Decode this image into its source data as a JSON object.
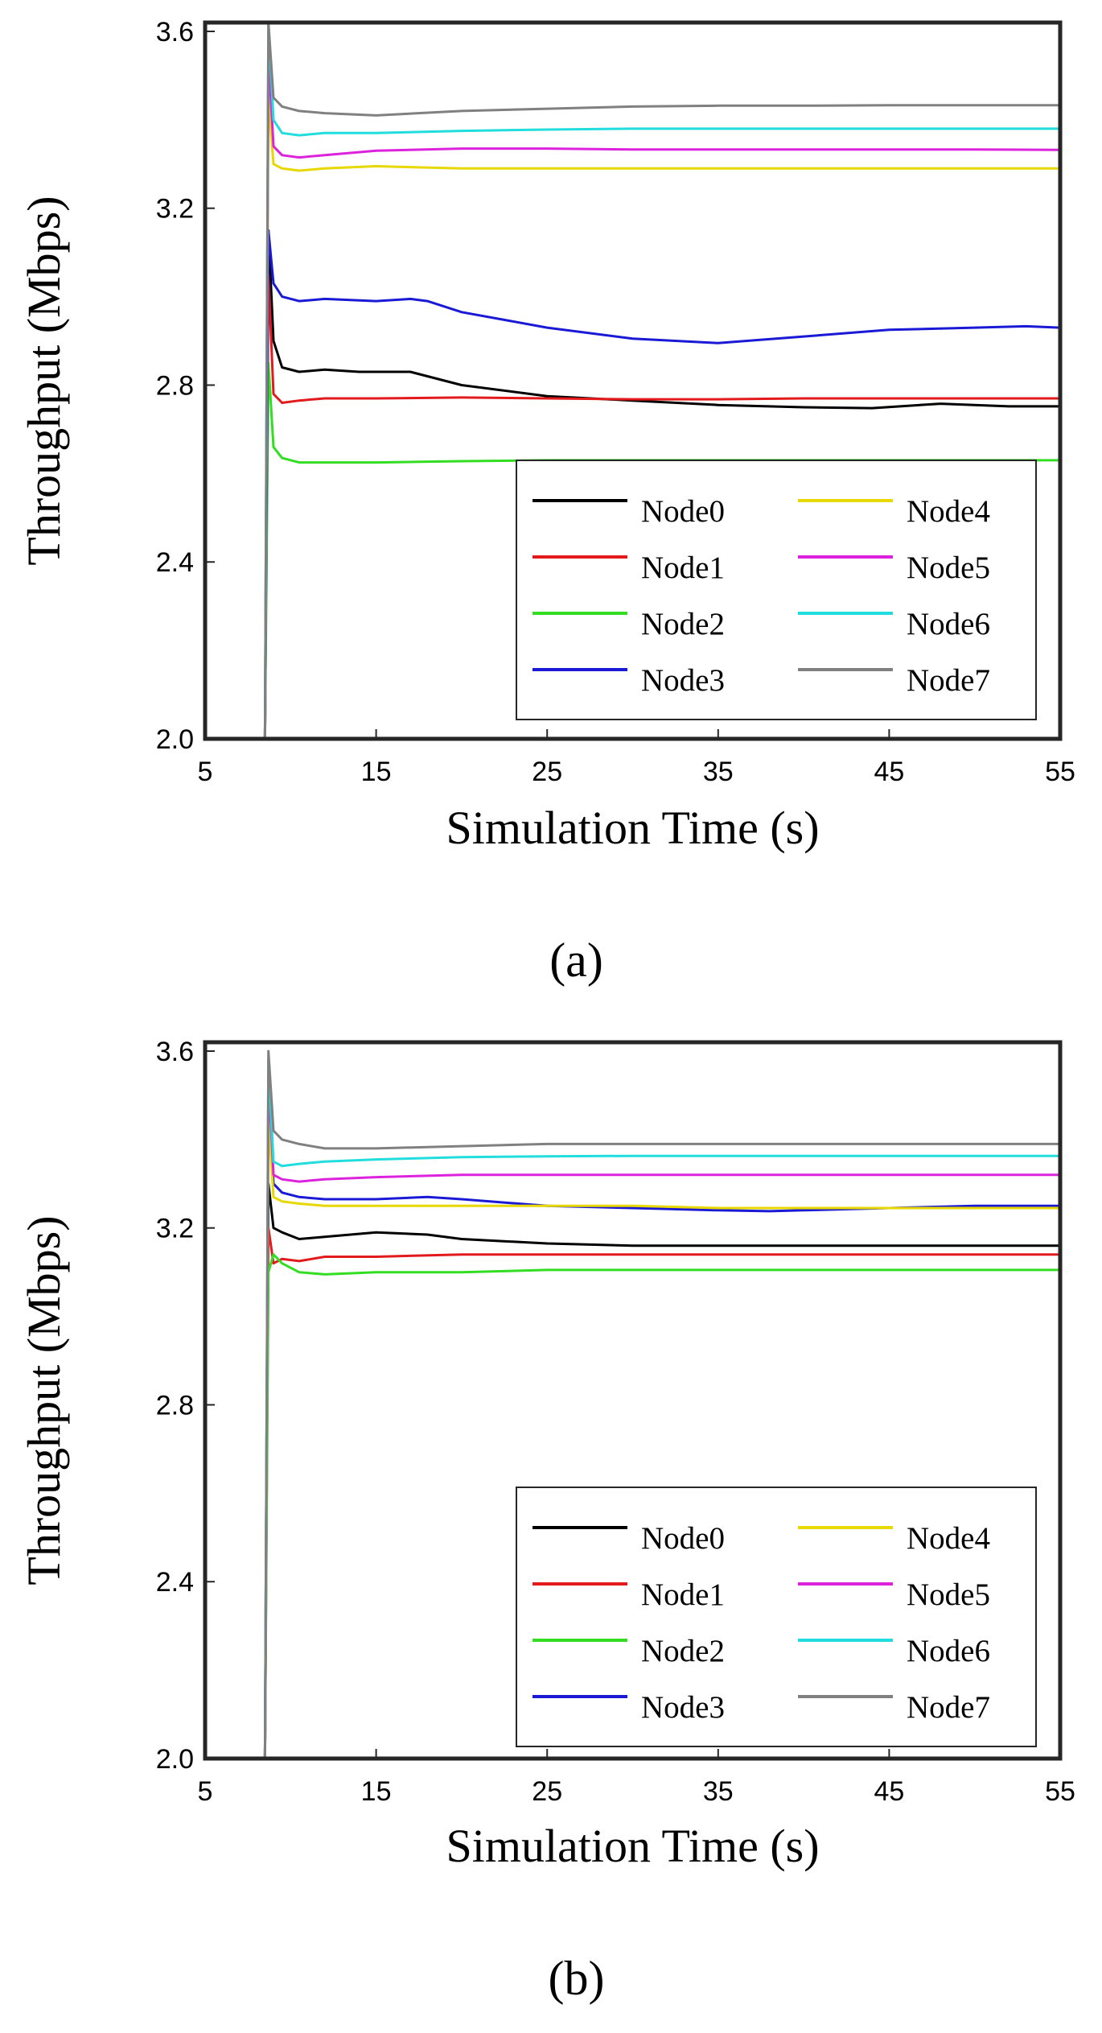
{
  "chart_data": [
    {
      "type": "line",
      "panel_label": "(a)",
      "xlabel": "Simulation Time (s)",
      "ylabel": "Throughput (Mbps)",
      "xlim": [
        5,
        55
      ],
      "ylim": [
        2.0,
        3.62
      ],
      "xticks": [
        5,
        15,
        25,
        35,
        45,
        55
      ],
      "xtick_labels": [
        "5",
        "15",
        "25",
        "35",
        "45",
        "55"
      ],
      "yticks": [
        2.0,
        2.4,
        2.8,
        3.2,
        3.6
      ],
      "ytick_labels": [
        "2.0",
        "2.4",
        "2.8",
        "3.2",
        "3.6"
      ],
      "legend_position": "bottom-right",
      "series": [
        {
          "name": "Node0",
          "color": "#000000",
          "x": [
            8.5,
            8.7,
            9.0,
            9.5,
            10.5,
            12,
            14,
            17,
            20,
            25,
            30,
            35,
            40,
            44,
            48,
            52,
            55
          ],
          "y": [
            2.0,
            3.15,
            2.9,
            2.84,
            2.83,
            2.835,
            2.83,
            2.83,
            2.8,
            2.775,
            2.765,
            2.755,
            2.75,
            2.748,
            2.758,
            2.752,
            2.752
          ]
        },
        {
          "name": "Node1",
          "color": "#e31a1c",
          "x": [
            8.5,
            8.7,
            9.0,
            9.5,
            10.5,
            12,
            15,
            20,
            25,
            30,
            35,
            40,
            45,
            50,
            55
          ],
          "y": [
            2.0,
            3.05,
            2.78,
            2.76,
            2.765,
            2.77,
            2.77,
            2.772,
            2.77,
            2.768,
            2.768,
            2.77,
            2.77,
            2.77,
            2.77
          ]
        },
        {
          "name": "Node2",
          "color": "#33dd22",
          "x": [
            8.5,
            8.7,
            9.0,
            9.5,
            10.5,
            12,
            15,
            20,
            25,
            30,
            35,
            40,
            45,
            50,
            55
          ],
          "y": [
            2.0,
            2.85,
            2.66,
            2.635,
            2.625,
            2.625,
            2.625,
            2.628,
            2.63,
            2.63,
            2.63,
            2.63,
            2.63,
            2.63,
            2.63
          ]
        },
        {
          "name": "Node3",
          "color": "#1a1ad6",
          "x": [
            8.5,
            8.7,
            9.0,
            9.5,
            10.5,
            12,
            15,
            17,
            18,
            20,
            25,
            30,
            35,
            40,
            45,
            50,
            53,
            55
          ],
          "y": [
            2.0,
            3.15,
            3.03,
            3.0,
            2.99,
            2.995,
            2.99,
            2.995,
            2.99,
            2.965,
            2.93,
            2.905,
            2.895,
            2.91,
            2.925,
            2.93,
            2.933,
            2.93
          ]
        },
        {
          "name": "Node4",
          "color": "#e6d800",
          "x": [
            8.5,
            8.7,
            9.0,
            9.5,
            10.5,
            12,
            15,
            20,
            25,
            30,
            35,
            40,
            45,
            50,
            55
          ],
          "y": [
            2.0,
            3.45,
            3.3,
            3.29,
            3.285,
            3.29,
            3.295,
            3.29,
            3.29,
            3.29,
            3.29,
            3.29,
            3.29,
            3.29,
            3.29
          ]
        },
        {
          "name": "Node5",
          "color": "#dd22dd",
          "x": [
            8.5,
            8.7,
            9.0,
            9.5,
            10.5,
            12,
            15,
            20,
            25,
            30,
            35,
            40,
            45,
            50,
            55
          ],
          "y": [
            2.0,
            3.55,
            3.34,
            3.32,
            3.315,
            3.32,
            3.33,
            3.335,
            3.335,
            3.333,
            3.333,
            3.333,
            3.333,
            3.333,
            3.332
          ]
        },
        {
          "name": "Node6",
          "color": "#22dddd",
          "x": [
            8.5,
            8.7,
            9.0,
            9.5,
            10.5,
            12,
            15,
            20,
            25,
            30,
            35,
            40,
            45,
            50,
            55
          ],
          "y": [
            2.0,
            3.62,
            3.4,
            3.37,
            3.365,
            3.37,
            3.37,
            3.375,
            3.378,
            3.38,
            3.38,
            3.38,
            3.38,
            3.38,
            3.38
          ]
        },
        {
          "name": "Node7",
          "color": "#808080",
          "x": [
            8.5,
            8.7,
            9.0,
            9.5,
            10.5,
            12,
            15,
            20,
            25,
            30,
            35,
            40,
            45,
            50,
            55
          ],
          "y": [
            2.0,
            3.62,
            3.45,
            3.43,
            3.42,
            3.415,
            3.41,
            3.42,
            3.425,
            3.43,
            3.432,
            3.432,
            3.433,
            3.433,
            3.433
          ]
        }
      ]
    },
    {
      "type": "line",
      "panel_label": "(b)",
      "xlabel": "Simulation Time (s)",
      "ylabel": "Throughput (Mbps)",
      "xlim": [
        5,
        55
      ],
      "ylim": [
        2.0,
        3.62
      ],
      "xticks": [
        5,
        15,
        25,
        35,
        45,
        55
      ],
      "xtick_labels": [
        "5",
        "15",
        "25",
        "35",
        "45",
        "55"
      ],
      "yticks": [
        2.0,
        2.4,
        2.8,
        3.2,
        3.6
      ],
      "ytick_labels": [
        "2.0",
        "2.4",
        "2.8",
        "3.2",
        "3.6"
      ],
      "legend_position": "bottom-right",
      "series": [
        {
          "name": "Node0",
          "color": "#000000",
          "x": [
            8.5,
            8.7,
            9.0,
            9.5,
            10.5,
            12,
            15,
            18,
            20,
            25,
            30,
            35,
            40,
            45,
            50,
            55
          ],
          "y": [
            2.0,
            3.3,
            3.2,
            3.19,
            3.175,
            3.18,
            3.19,
            3.185,
            3.175,
            3.165,
            3.16,
            3.16,
            3.16,
            3.16,
            3.16,
            3.16
          ]
        },
        {
          "name": "Node1",
          "color": "#e31a1c",
          "x": [
            8.5,
            8.7,
            9.0,
            9.5,
            10.5,
            12,
            15,
            20,
            25,
            30,
            35,
            40,
            45,
            50,
            55
          ],
          "y": [
            2.0,
            3.2,
            3.12,
            3.13,
            3.125,
            3.135,
            3.135,
            3.14,
            3.14,
            3.14,
            3.14,
            3.14,
            3.14,
            3.14,
            3.14
          ]
        },
        {
          "name": "Node2",
          "color": "#33dd22",
          "x": [
            8.5,
            8.7,
            9.0,
            9.5,
            10.5,
            12,
            15,
            20,
            25,
            30,
            35,
            40,
            45,
            50,
            55
          ],
          "y": [
            2.0,
            3.1,
            3.14,
            3.12,
            3.1,
            3.095,
            3.1,
            3.1,
            3.105,
            3.105,
            3.105,
            3.105,
            3.105,
            3.105,
            3.105
          ]
        },
        {
          "name": "Node3",
          "color": "#1a1ad6",
          "x": [
            8.5,
            8.7,
            9.0,
            9.5,
            10.5,
            12,
            15,
            18,
            20,
            25,
            30,
            35,
            38,
            40,
            45,
            50,
            55
          ],
          "y": [
            2.0,
            3.5,
            3.3,
            3.28,
            3.27,
            3.265,
            3.265,
            3.27,
            3.265,
            3.25,
            3.245,
            3.24,
            3.238,
            3.24,
            3.245,
            3.25,
            3.25
          ]
        },
        {
          "name": "Node4",
          "color": "#e6d800",
          "x": [
            8.5,
            8.7,
            9.0,
            9.5,
            10.5,
            12,
            15,
            20,
            25,
            30,
            35,
            40,
            45,
            50,
            55
          ],
          "y": [
            2.0,
            3.45,
            3.27,
            3.26,
            3.255,
            3.25,
            3.25,
            3.25,
            3.25,
            3.25,
            3.245,
            3.245,
            3.245,
            3.245,
            3.245
          ]
        },
        {
          "name": "Node5",
          "color": "#dd22dd",
          "x": [
            8.5,
            8.7,
            9.0,
            9.5,
            10.5,
            12,
            15,
            20,
            25,
            30,
            35,
            40,
            45,
            50,
            55
          ],
          "y": [
            2.0,
            3.55,
            3.32,
            3.31,
            3.305,
            3.31,
            3.315,
            3.32,
            3.32,
            3.32,
            3.32,
            3.32,
            3.32,
            3.32,
            3.32
          ]
        },
        {
          "name": "Node6",
          "color": "#22dddd",
          "x": [
            8.5,
            8.7,
            9.0,
            9.5,
            10.5,
            12,
            15,
            20,
            25,
            30,
            35,
            40,
            45,
            50,
            55
          ],
          "y": [
            2.0,
            3.58,
            3.35,
            3.34,
            3.345,
            3.35,
            3.355,
            3.36,
            3.362,
            3.363,
            3.363,
            3.363,
            3.363,
            3.363,
            3.363
          ]
        },
        {
          "name": "Node7",
          "color": "#808080",
          "x": [
            8.5,
            8.7,
            9.0,
            9.5,
            10.5,
            12,
            15,
            20,
            25,
            30,
            35,
            40,
            45,
            50,
            55
          ],
          "y": [
            2.0,
            3.6,
            3.42,
            3.4,
            3.39,
            3.38,
            3.38,
            3.385,
            3.39,
            3.39,
            3.39,
            3.39,
            3.39,
            3.39,
            3.39
          ]
        }
      ]
    }
  ]
}
